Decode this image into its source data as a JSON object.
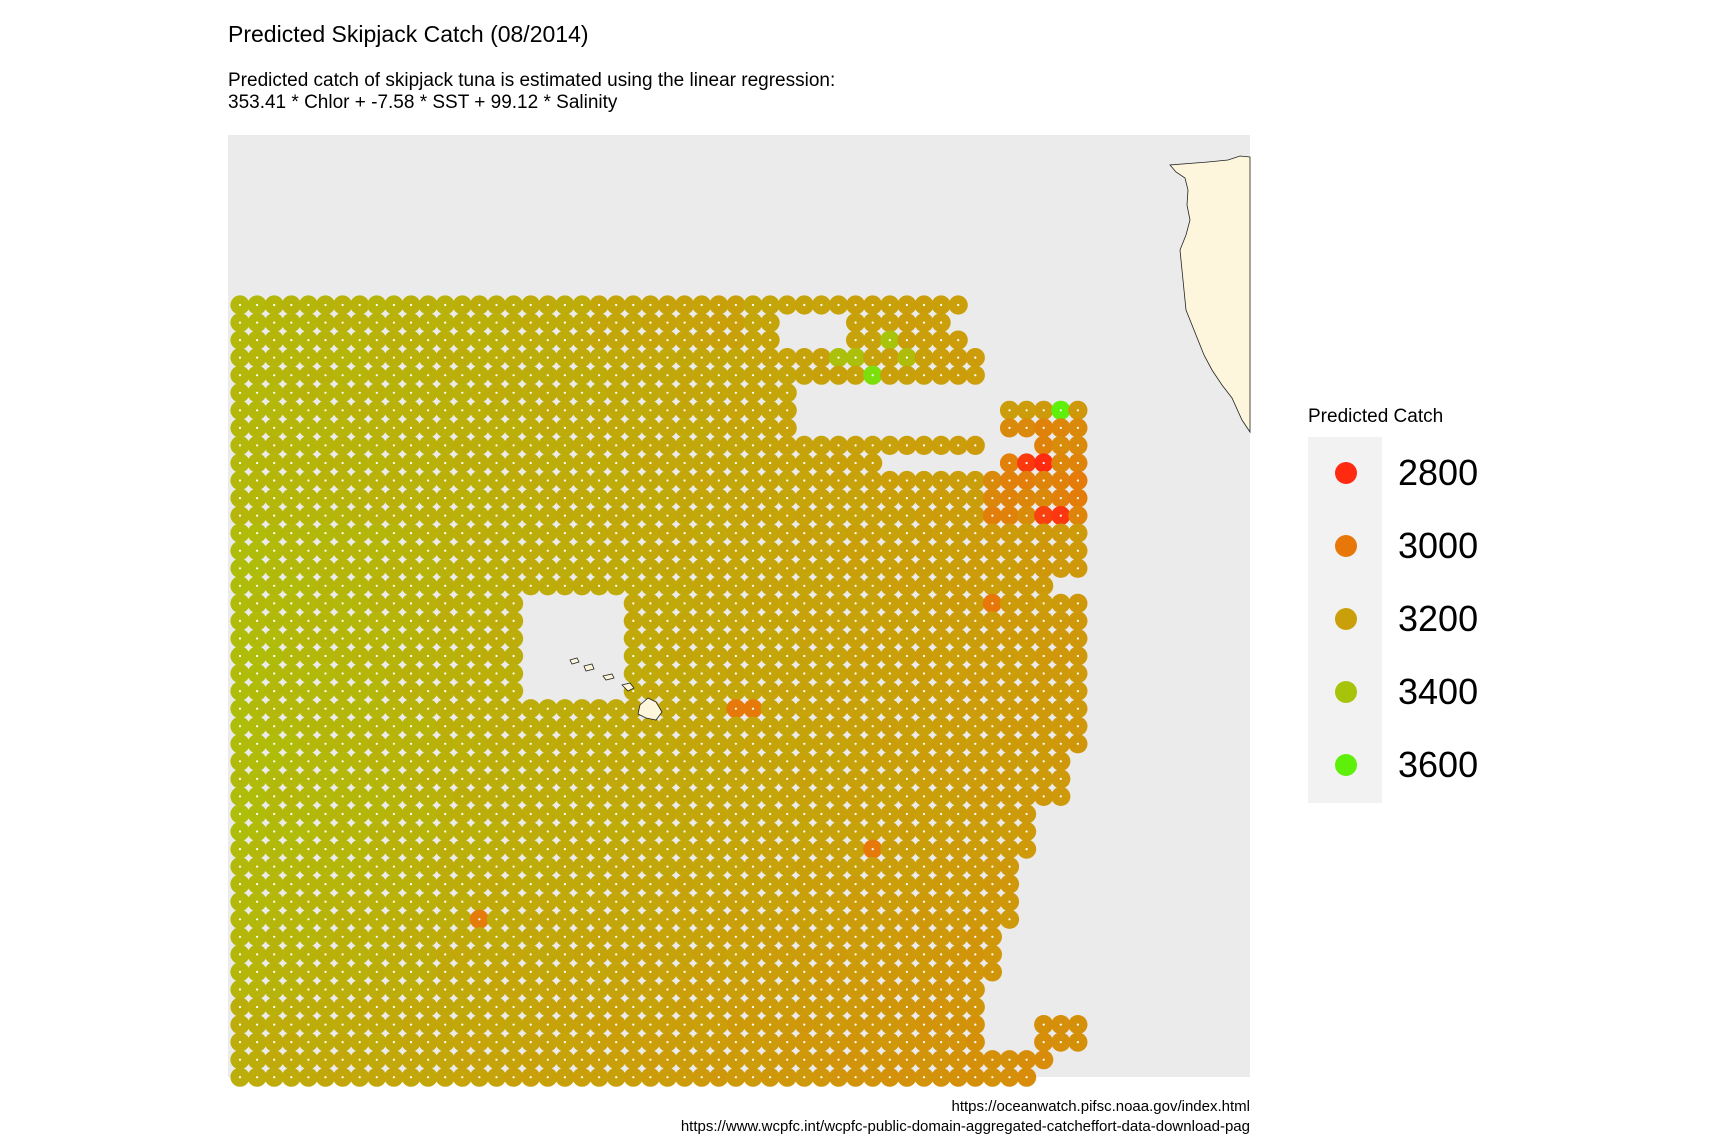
{
  "chart_data": {
    "type": "scatter",
    "title": "Predicted Skipjack Catch (08/2014)",
    "subtitle_lines": [
      "Predicted catch of skipjack tuna is estimated using the linear regression:",
      "353.41 * Chlor + -7.58 * SST + 99.12 * Salinity"
    ],
    "xlabel": "",
    "ylabel": "",
    "grid": false,
    "legend": {
      "title": "Predicted Catch",
      "position": "right",
      "entries": [
        {
          "label": "2800",
          "value": 2800,
          "color": "#ff2a10"
        },
        {
          "label": "3000",
          "value": 3000,
          "color": "#e8770a"
        },
        {
          "label": "3200",
          "value": 3200,
          "color": "#c9a00a"
        },
        {
          "label": "3400",
          "value": 3400,
          "color": "#a8c40a"
        },
        {
          "label": "3600",
          "value": 3600,
          "color": "#5ef00a"
        }
      ]
    },
    "panel_background": "#ebebeb",
    "land_color": "#fdf6dc",
    "highlights": [
      {
        "value": 2880,
        "note": "orange-red cells west of coast"
      },
      {
        "value": 2800,
        "note": "red cells near coastal bay"
      },
      {
        "value": 3600,
        "note": "bright green cells near coast"
      }
    ]
  },
  "captions": [
    "https://oceanwatch.pifsc.noaa.gov/index.html",
    "https://www.wcpfc.int/wcpfc-public-domain-aggregated-catcheffort-data-download-pag"
  ]
}
